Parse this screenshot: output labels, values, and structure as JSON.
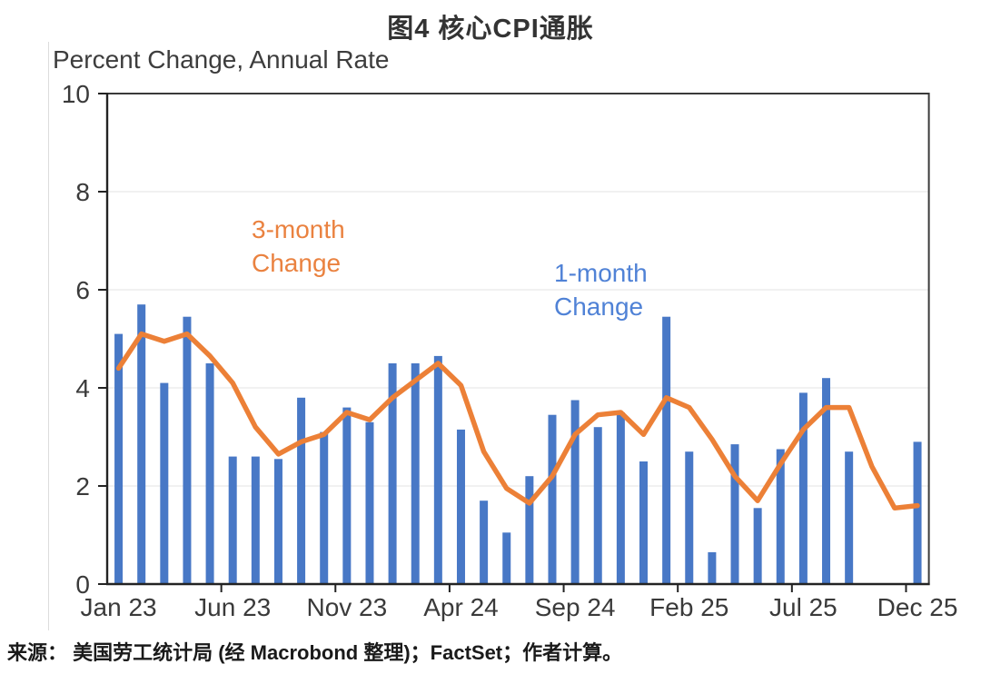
{
  "title": "图4  核心CPI通胀",
  "subtitle": "Percent Change, Annual Rate",
  "annotations": {
    "three_month": "3-month\nChange",
    "one_month": "1-month\nChange"
  },
  "source": "来源： 美国劳工统计局 (经 Macrobond 整理)；FactSet；作者计算。",
  "colors": {
    "bar": "#4878C6",
    "line": "#EC8037",
    "annotation_orange": "#EA8240",
    "annotation_blue": "#5082D6",
    "axis_frame": "#3a3a3a",
    "axis_dark": "#232323",
    "grid": "#f1f1f1",
    "tick_label": "#3a3a3a"
  },
  "chart_data": {
    "type": "bar",
    "title": "图4 核心CPI通胀",
    "ylabel": "Percent Change, Annual Rate",
    "xlabel": "",
    "ylim": [
      0,
      10
    ],
    "yticks": [
      0,
      2,
      4,
      6,
      8,
      10
    ],
    "grid": "horizontal",
    "legend_position": "none (in-plot text annotations)",
    "categories": [
      "Jan 23",
      "Feb 23",
      "Mar 23",
      "Apr 23",
      "May 23",
      "Jun 23",
      "Jul 23",
      "Aug 23",
      "Sep 23",
      "Oct 23",
      "Nov 23",
      "Dec 23",
      "Jan 24",
      "Feb 24",
      "Mar 24",
      "Apr 24",
      "May 24",
      "Jun 24",
      "Jul 24",
      "Aug 24",
      "Sep 24",
      "Oct 24",
      "Nov 24",
      "Dec 24",
      "Jan 25",
      "Feb 25",
      "Mar 25",
      "Apr 25",
      "May 25",
      "Jun 25",
      "Jul 25",
      "Aug 25",
      "Sep 25",
      "Oct 25",
      "Nov 25",
      "Dec 25"
    ],
    "x_tick_labels": [
      "Jan 23",
      "Jun 23",
      "Nov 23",
      "Apr 24",
      "Sep 24",
      "Feb 25",
      "Jul 25",
      "Dec 25"
    ],
    "x_tick_indices": [
      0,
      5,
      10,
      15,
      20,
      25,
      30,
      35
    ],
    "series": [
      {
        "name": "1-month Change",
        "type": "bar",
        "values": [
          5.1,
          5.7,
          4.1,
          5.45,
          4.5,
          2.6,
          2.6,
          2.55,
          3.8,
          3.1,
          3.6,
          3.3,
          4.5,
          4.5,
          4.65,
          3.15,
          1.7,
          1.05,
          2.2,
          3.45,
          3.75,
          3.2,
          3.5,
          2.5,
          5.45,
          2.7,
          0.65,
          2.85,
          1.55,
          2.75,
          3.9,
          4.2,
          2.7,
          null,
          null,
          2.9
        ]
      },
      {
        "name": "3-month Change",
        "type": "line",
        "values": [
          4.4,
          5.1,
          4.95,
          5.1,
          4.65,
          4.1,
          3.2,
          2.65,
          2.9,
          3.05,
          3.5,
          3.35,
          3.8,
          4.15,
          4.5,
          4.05,
          2.7,
          1.95,
          1.65,
          2.2,
          3.05,
          3.45,
          3.5,
          3.05,
          3.8,
          3.6,
          2.95,
          2.2,
          1.7,
          2.45,
          3.15,
          3.6,
          3.6,
          2.4,
          1.55,
          1.6
        ]
      }
    ]
  }
}
